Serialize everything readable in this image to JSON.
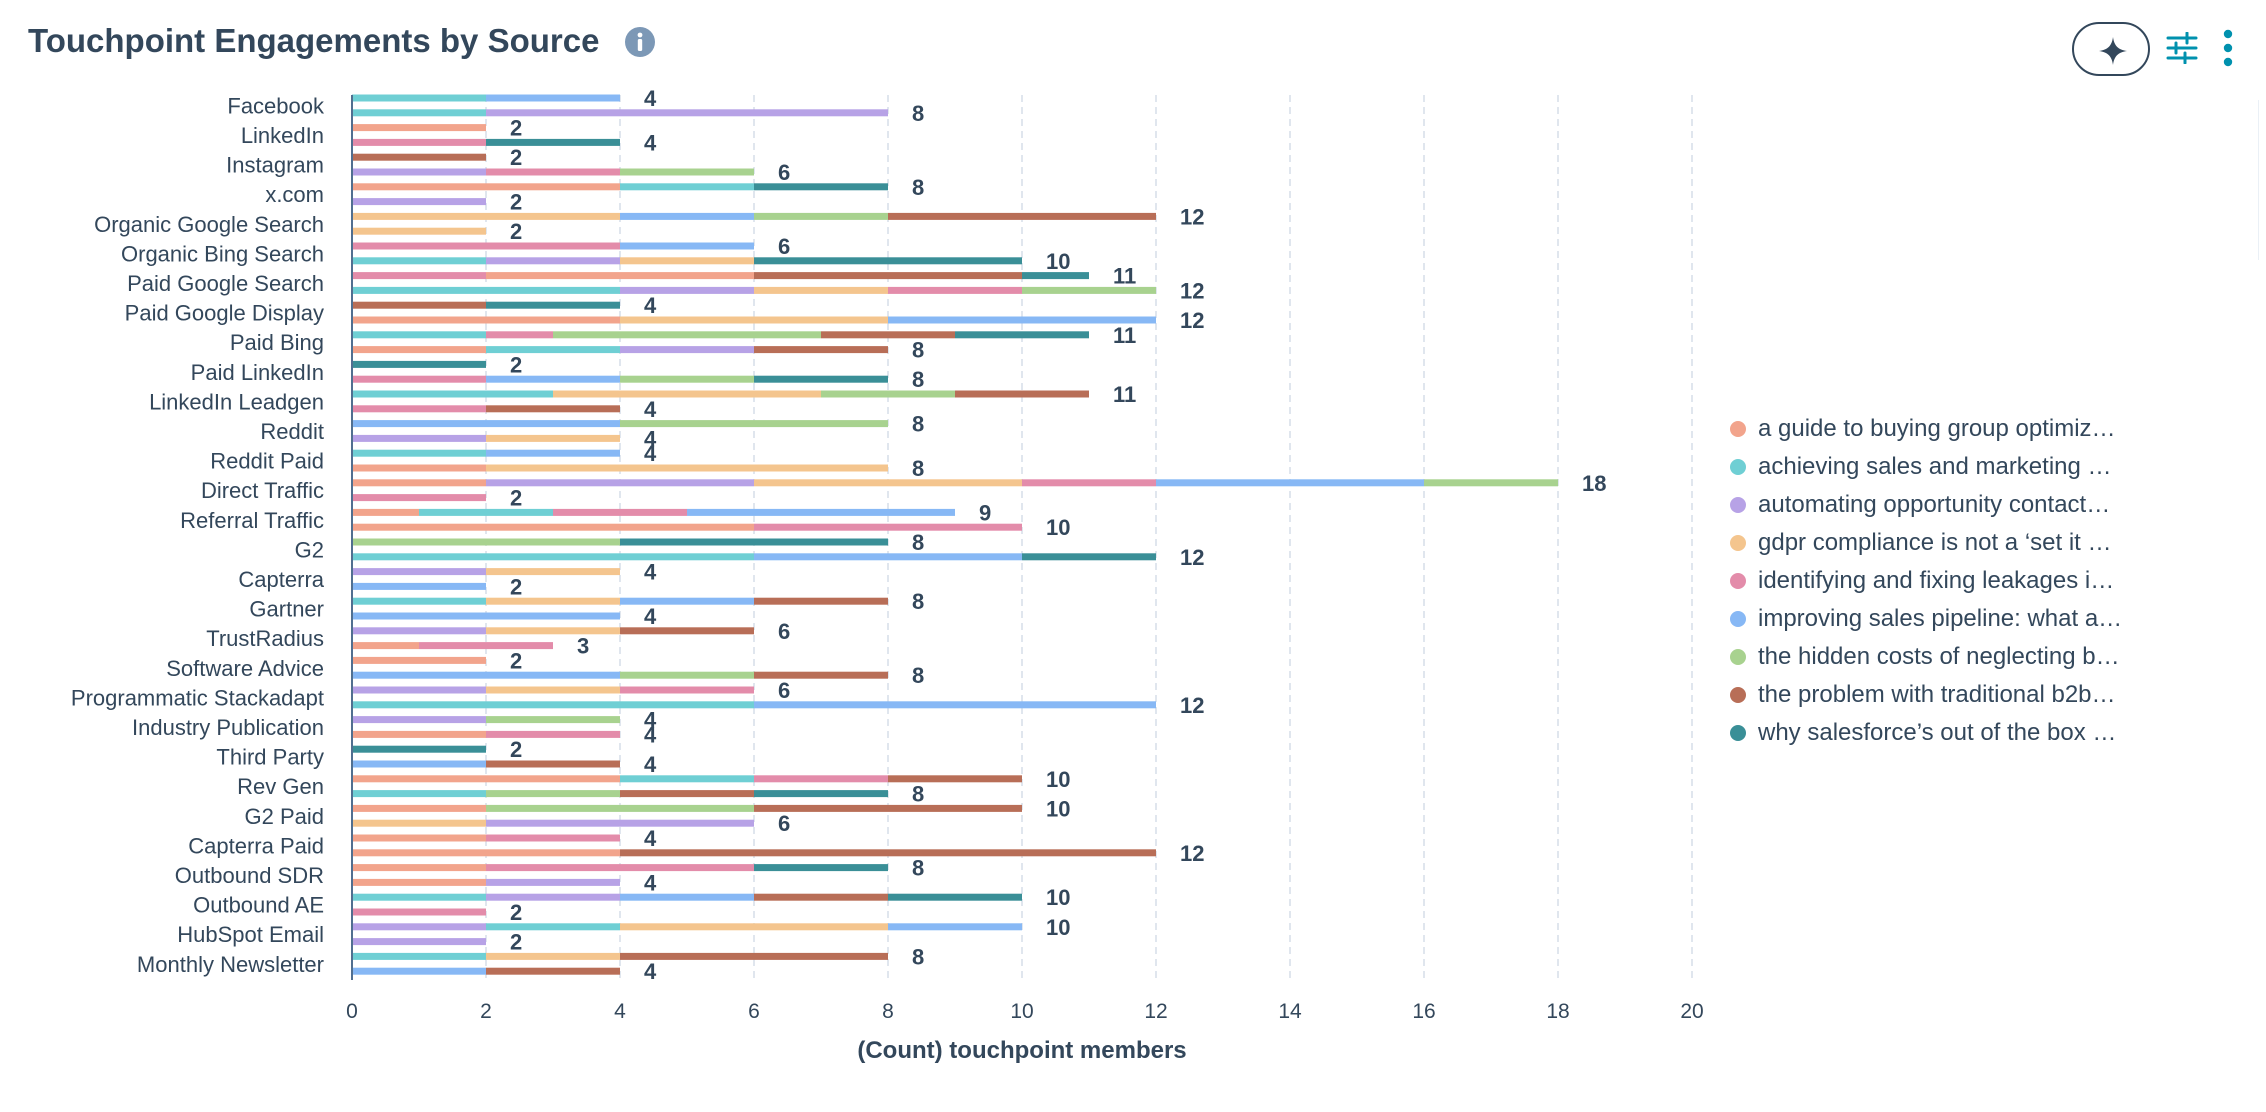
{
  "header": {
    "title": "Touchpoint Engagements by Source"
  },
  "icons": {
    "info": "info-icon",
    "ai": "sparkle-icon",
    "filter": "sliders-icon",
    "more": "more-vertical-icon"
  },
  "colors": [
    "#f2a48c",
    "#6fcfd4",
    "#b7a2e6",
    "#f4c58e",
    "#e38caa",
    "#87b8f5",
    "#a8d28f",
    "#b86e57",
    "#3a8f97"
  ],
  "chart_data": {
    "type": "bar",
    "orientation": "horizontal",
    "stacked": true,
    "xlabel": "(Count) touchpoint members",
    "xlim": [
      0,
      20
    ],
    "xticks": [
      0,
      2,
      4,
      6,
      8,
      10,
      12,
      14,
      16,
      18,
      20
    ],
    "grid": true,
    "legend_position": "right",
    "series_names": [
      "a guide to buying group optimiz…",
      "achieving sales and marketing …",
      "automating opportunity contact…",
      "gdpr compliance is not a ‘set it …",
      "identifying and fixing leakages i…",
      "improving sales pipeline: what a…",
      "the hidden costs of neglecting b…",
      "the problem with traditional b2b…",
      "why salesforce’s out of the box …"
    ],
    "categories": [
      "Facebook",
      "LinkedIn",
      "Instagram",
      "x.com",
      "Organic Google Search",
      "Organic Bing Search",
      "Paid Google Search",
      "Paid Google Display",
      "Paid Bing",
      "Paid LinkedIn",
      "LinkedIn Leadgen",
      "Reddit",
      "Reddit Paid",
      "Direct Traffic",
      "Referral Traffic",
      "G2",
      "Capterra",
      "Gartner",
      "TrustRadius",
      "Software Advice",
      "Programmatic Stackadapt",
      "Industry Publication",
      "Third Party",
      "Rev Gen",
      "G2 Paid",
      "Capterra Paid",
      "Outbound SDR",
      "Outbound AE",
      "HubSpot Email",
      "Monthly Newsletter"
    ],
    "bars": [
      {
        "category": 0,
        "total": 4,
        "segments": [
          [
            1,
            2
          ],
          [
            5,
            2
          ]
        ]
      },
      {
        "category": 0,
        "total": 8,
        "segments": [
          [
            1,
            2
          ],
          [
            2,
            6
          ]
        ]
      },
      {
        "category": 1,
        "total": 2,
        "segments": [
          [
            0,
            2
          ]
        ]
      },
      {
        "category": 1,
        "total": 4,
        "segments": [
          [
            4,
            2
          ],
          [
            8,
            2
          ]
        ]
      },
      {
        "category": 2,
        "total": 2,
        "segments": [
          [
            7,
            2
          ]
        ]
      },
      {
        "category": 2,
        "total": 6,
        "segments": [
          [
            2,
            2
          ],
          [
            4,
            2
          ],
          [
            6,
            2
          ]
        ]
      },
      {
        "category": 3,
        "total": 8,
        "segments": [
          [
            0,
            4
          ],
          [
            1,
            2
          ],
          [
            8,
            2
          ]
        ]
      },
      {
        "category": 3,
        "total": 2,
        "segments": [
          [
            2,
            2
          ]
        ]
      },
      {
        "category": 4,
        "total": 12,
        "segments": [
          [
            3,
            2
          ],
          [
            3,
            2
          ],
          [
            5,
            2
          ],
          [
            6,
            2
          ],
          [
            7,
            4
          ]
        ]
      },
      {
        "category": 4,
        "total": 2,
        "segments": [
          [
            3,
            2
          ]
        ]
      },
      {
        "category": 5,
        "total": 6,
        "segments": [
          [
            4,
            4
          ],
          [
            5,
            2
          ]
        ]
      },
      {
        "category": 5,
        "total": 10,
        "segments": [
          [
            1,
            2
          ],
          [
            2,
            2
          ],
          [
            3,
            2
          ],
          [
            8,
            4
          ]
        ]
      },
      {
        "category": 6,
        "total": 11,
        "segments": [
          [
            4,
            2
          ],
          [
            0,
            4
          ],
          [
            7,
            4
          ],
          [
            8,
            1
          ]
        ]
      },
      {
        "category": 6,
        "total": 12,
        "segments": [
          [
            1,
            4
          ],
          [
            2,
            2
          ],
          [
            3,
            2
          ],
          [
            4,
            2
          ],
          [
            6,
            2
          ]
        ]
      },
      {
        "category": 7,
        "total": 4,
        "segments": [
          [
            7,
            2
          ],
          [
            8,
            2
          ]
        ]
      },
      {
        "category": 7,
        "total": 12,
        "segments": [
          [
            0,
            4
          ],
          [
            3,
            4
          ],
          [
            5,
            4
          ]
        ]
      },
      {
        "category": 8,
        "total": 11,
        "segments": [
          [
            1,
            2
          ],
          [
            4,
            1
          ],
          [
            6,
            4
          ],
          [
            7,
            2
          ],
          [
            8,
            2
          ]
        ]
      },
      {
        "category": 8,
        "total": 8,
        "segments": [
          [
            0,
            2
          ],
          [
            1,
            2
          ],
          [
            2,
            2
          ],
          [
            7,
            2
          ]
        ]
      },
      {
        "category": 9,
        "total": 2,
        "segments": [
          [
            8,
            2
          ]
        ]
      },
      {
        "category": 9,
        "total": 8,
        "segments": [
          [
            4,
            2
          ],
          [
            5,
            2
          ],
          [
            6,
            2
          ],
          [
            8,
            2
          ]
        ]
      },
      {
        "category": 10,
        "total": 11,
        "segments": [
          [
            1,
            3
          ],
          [
            3,
            4
          ],
          [
            6,
            2
          ],
          [
            7,
            2
          ]
        ]
      },
      {
        "category": 10,
        "total": 4,
        "segments": [
          [
            4,
            2
          ],
          [
            7,
            2
          ]
        ]
      },
      {
        "category": 11,
        "total": 8,
        "segments": [
          [
            5,
            4
          ],
          [
            6,
            4
          ]
        ]
      },
      {
        "category": 11,
        "total": 4,
        "segments": [
          [
            2,
            2
          ],
          [
            3,
            2
          ]
        ]
      },
      {
        "category": 12,
        "total": 4,
        "segments": [
          [
            1,
            2
          ],
          [
            5,
            2
          ]
        ]
      },
      {
        "category": 12,
        "total": 8,
        "segments": [
          [
            0,
            2
          ],
          [
            3,
            6
          ]
        ]
      },
      {
        "category": 13,
        "total": 18,
        "segments": [
          [
            0,
            2
          ],
          [
            2,
            4
          ],
          [
            3,
            4
          ],
          [
            4,
            2
          ],
          [
            5,
            4
          ],
          [
            6,
            2
          ]
        ]
      },
      {
        "category": 13,
        "total": 2,
        "segments": [
          [
            4,
            2
          ]
        ]
      },
      {
        "category": 14,
        "total": 9,
        "segments": [
          [
            0,
            1
          ],
          [
            1,
            2
          ],
          [
            4,
            2
          ],
          [
            5,
            4
          ]
        ]
      },
      {
        "category": 14,
        "total": 10,
        "segments": [
          [
            0,
            6
          ],
          [
            4,
            4
          ]
        ]
      },
      {
        "category": 15,
        "total": 8,
        "segments": [
          [
            6,
            4
          ],
          [
            8,
            4
          ]
        ]
      },
      {
        "category": 15,
        "total": 12,
        "segments": [
          [
            1,
            6
          ],
          [
            5,
            4
          ],
          [
            8,
            2
          ]
        ]
      },
      {
        "category": 16,
        "total": 4,
        "segments": [
          [
            2,
            2
          ],
          [
            3,
            2
          ]
        ]
      },
      {
        "category": 16,
        "total": 2,
        "segments": [
          [
            5,
            2
          ]
        ]
      },
      {
        "category": 17,
        "total": 8,
        "segments": [
          [
            1,
            2
          ],
          [
            3,
            2
          ],
          [
            5,
            2
          ],
          [
            7,
            2
          ]
        ]
      },
      {
        "category": 17,
        "total": 4,
        "segments": [
          [
            5,
            4
          ]
        ]
      },
      {
        "category": 18,
        "total": 6,
        "segments": [
          [
            2,
            2
          ],
          [
            3,
            2
          ],
          [
            7,
            2
          ]
        ]
      },
      {
        "category": 18,
        "total": 3,
        "segments": [
          [
            0,
            1
          ],
          [
            4,
            2
          ]
        ]
      },
      {
        "category": 19,
        "total": 2,
        "segments": [
          [
            0,
            2
          ]
        ]
      },
      {
        "category": 19,
        "total": 8,
        "segments": [
          [
            5,
            4
          ],
          [
            6,
            2
          ],
          [
            7,
            2
          ]
        ]
      },
      {
        "category": 20,
        "total": 6,
        "segments": [
          [
            2,
            2
          ],
          [
            3,
            2
          ],
          [
            4,
            2
          ]
        ]
      },
      {
        "category": 20,
        "total": 12,
        "segments": [
          [
            1,
            6
          ],
          [
            5,
            6
          ]
        ]
      },
      {
        "category": 21,
        "total": 4,
        "segments": [
          [
            2,
            2
          ],
          [
            6,
            2
          ]
        ]
      },
      {
        "category": 21,
        "total": 4,
        "segments": [
          [
            0,
            2
          ],
          [
            4,
            2
          ]
        ]
      },
      {
        "category": 22,
        "total": 2,
        "segments": [
          [
            8,
            2
          ]
        ]
      },
      {
        "category": 22,
        "total": 4,
        "segments": [
          [
            5,
            2
          ],
          [
            7,
            2
          ]
        ]
      },
      {
        "category": 23,
        "total": 10,
        "segments": [
          [
            0,
            4
          ],
          [
            1,
            2
          ],
          [
            4,
            2
          ],
          [
            7,
            2
          ]
        ]
      },
      {
        "category": 23,
        "total": 8,
        "segments": [
          [
            1,
            2
          ],
          [
            6,
            2
          ],
          [
            7,
            2
          ],
          [
            8,
            2
          ]
        ]
      },
      {
        "category": 24,
        "total": 10,
        "segments": [
          [
            0,
            2
          ],
          [
            6,
            4
          ],
          [
            7,
            4
          ]
        ]
      },
      {
        "category": 24,
        "total": 6,
        "segments": [
          [
            3,
            2
          ],
          [
            2,
            4
          ]
        ]
      },
      {
        "category": 25,
        "total": 4,
        "segments": [
          [
            0,
            2
          ],
          [
            4,
            2
          ]
        ]
      },
      {
        "category": 25,
        "total": 12,
        "segments": [
          [
            0,
            4
          ],
          [
            7,
            8
          ]
        ]
      },
      {
        "category": 26,
        "total": 8,
        "segments": [
          [
            0,
            2
          ],
          [
            4,
            4
          ],
          [
            8,
            2
          ]
        ]
      },
      {
        "category": 26,
        "total": 4,
        "segments": [
          [
            0,
            2
          ],
          [
            2,
            2
          ]
        ]
      },
      {
        "category": 27,
        "total": 10,
        "segments": [
          [
            1,
            2
          ],
          [
            2,
            2
          ],
          [
            5,
            2
          ],
          [
            7,
            2
          ],
          [
            8,
            2
          ]
        ]
      },
      {
        "category": 27,
        "total": 2,
        "segments": [
          [
            4,
            2
          ]
        ]
      },
      {
        "category": 28,
        "total": 10,
        "segments": [
          [
            2,
            2
          ],
          [
            1,
            2
          ],
          [
            3,
            4
          ],
          [
            5,
            2
          ]
        ]
      },
      {
        "category": 28,
        "total": 2,
        "segments": [
          [
            2,
            2
          ]
        ]
      },
      {
        "category": 29,
        "total": 8,
        "segments": [
          [
            1,
            2
          ],
          [
            3,
            2
          ],
          [
            7,
            4
          ]
        ]
      },
      {
        "category": 29,
        "total": 4,
        "segments": [
          [
            5,
            2
          ],
          [
            7,
            2
          ]
        ]
      }
    ]
  }
}
